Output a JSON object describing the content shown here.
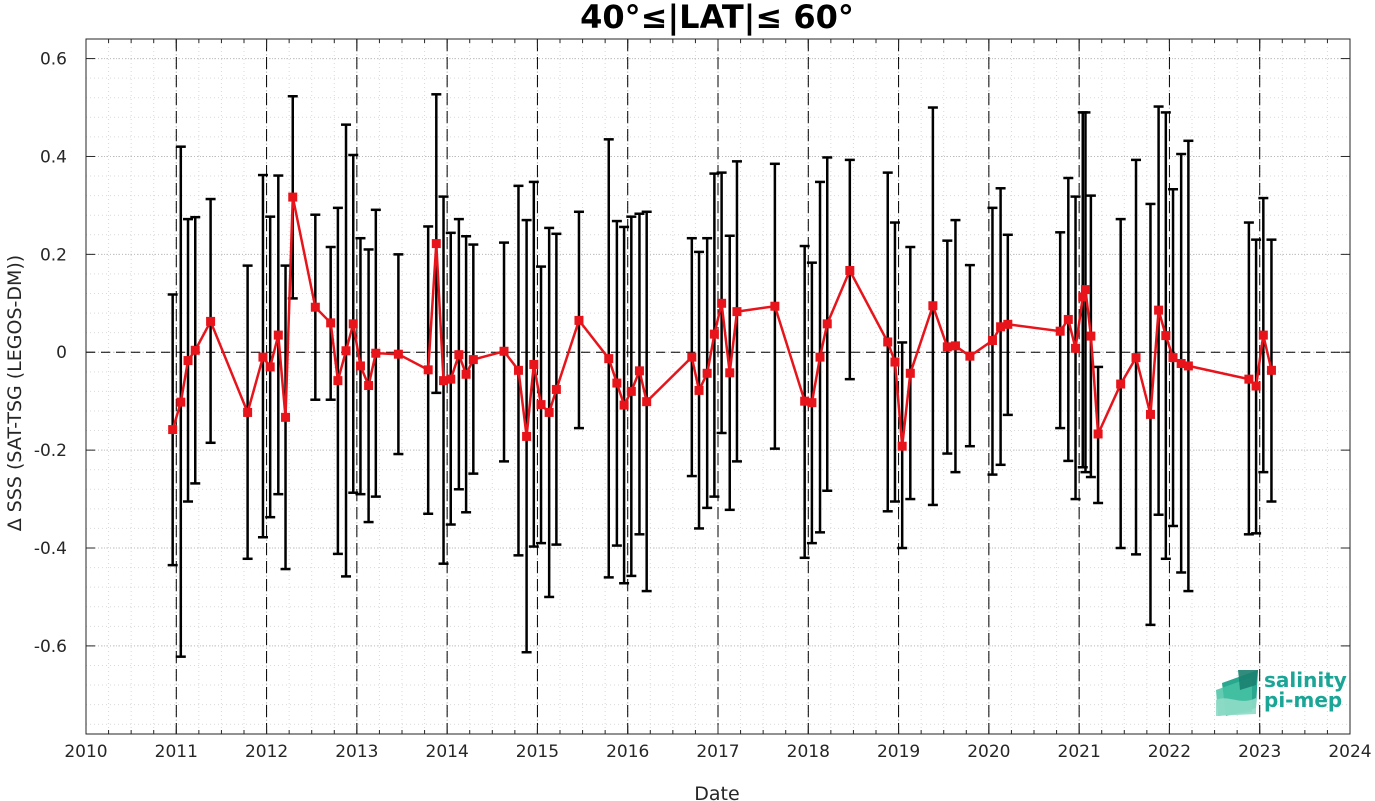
{
  "chart_data": {
    "type": "line",
    "title": "40°≤|LAT|≤ 60°",
    "xlabel": "Date",
    "ylabel": "Δ SSS (SAT-TSG (LEGOS-DM))",
    "xlim": [
      2010,
      2024
    ],
    "ylim": [
      -0.78,
      0.64
    ],
    "xticks": [
      "2010",
      "2011",
      "2012",
      "2013",
      "2014",
      "2015",
      "2016",
      "2017",
      "2018",
      "2019",
      "2020",
      "2021",
      "2022",
      "2023",
      "2024"
    ],
    "yticks": [
      "-0.6",
      "-0.4",
      "-0.2",
      "0",
      "0.2",
      "0.4",
      "0.6"
    ],
    "grid": true,
    "series": [
      {
        "color": "#e8141b",
        "error_bar_color": "#000000",
        "points": [
          {
            "x": 2010.96,
            "y": -0.158,
            "lo": -0.435,
            "hi": 0.118
          },
          {
            "x": 2011.05,
            "y": -0.102,
            "lo": -0.622,
            "hi": 0.42
          },
          {
            "x": 2011.13,
            "y": -0.017,
            "lo": -0.305,
            "hi": 0.272
          },
          {
            "x": 2011.21,
            "y": 0.004,
            "lo": -0.268,
            "hi": 0.276
          },
          {
            "x": 2011.38,
            "y": 0.063,
            "lo": -0.185,
            "hi": 0.313
          },
          {
            "x": 2011.79,
            "y": -0.123,
            "lo": -0.422,
            "hi": 0.177
          },
          {
            "x": 2011.96,
            "y": -0.01,
            "lo": -0.378,
            "hi": 0.362
          },
          {
            "x": 2012.04,
            "y": -0.03,
            "lo": -0.337,
            "hi": 0.277
          },
          {
            "x": 2012.13,
            "y": 0.035,
            "lo": -0.29,
            "hi": 0.361
          },
          {
            "x": 2012.21,
            "y": -0.133,
            "lo": -0.443,
            "hi": 0.177
          },
          {
            "x": 2012.29,
            "y": 0.317,
            "lo": 0.11,
            "hi": 0.523
          },
          {
            "x": 2012.54,
            "y": 0.092,
            "lo": -0.097,
            "hi": 0.281
          },
          {
            "x": 2012.71,
            "y": 0.06,
            "lo": -0.097,
            "hi": 0.215
          },
          {
            "x": 2012.79,
            "y": -0.058,
            "lo": -0.412,
            "hi": 0.295
          },
          {
            "x": 2012.88,
            "y": 0.003,
            "lo": -0.458,
            "hi": 0.465
          },
          {
            "x": 2012.96,
            "y": 0.058,
            "lo": -0.287,
            "hi": 0.403
          },
          {
            "x": 2013.04,
            "y": -0.028,
            "lo": -0.29,
            "hi": 0.233
          },
          {
            "x": 2013.13,
            "y": -0.068,
            "lo": -0.347,
            "hi": 0.21
          },
          {
            "x": 2013.21,
            "y": -0.002,
            "lo": -0.295,
            "hi": 0.291
          },
          {
            "x": 2013.46,
            "y": -0.004,
            "lo": -0.208,
            "hi": 0.2
          },
          {
            "x": 2013.79,
            "y": -0.036,
            "lo": -0.33,
            "hi": 0.257
          },
          {
            "x": 2013.88,
            "y": 0.222,
            "lo": -0.083,
            "hi": 0.527
          },
          {
            "x": 2013.96,
            "y": -0.058,
            "lo": -0.432,
            "hi": 0.318
          },
          {
            "x": 2014.04,
            "y": -0.055,
            "lo": -0.352,
            "hi": 0.244
          },
          {
            "x": 2014.13,
            "y": -0.005,
            "lo": -0.28,
            "hi": 0.272
          },
          {
            "x": 2014.21,
            "y": -0.045,
            "lo": -0.327,
            "hi": 0.237
          },
          {
            "x": 2014.29,
            "y": -0.015,
            "lo": -0.248,
            "hi": 0.22
          },
          {
            "x": 2014.63,
            "y": 0.002,
            "lo": -0.223,
            "hi": 0.224
          },
          {
            "x": 2014.79,
            "y": -0.037,
            "lo": -0.415,
            "hi": 0.34
          },
          {
            "x": 2014.88,
            "y": -0.172,
            "lo": -0.613,
            "hi": 0.27
          },
          {
            "x": 2014.96,
            "y": -0.025,
            "lo": -0.397,
            "hi": 0.348
          },
          {
            "x": 2015.04,
            "y": -0.107,
            "lo": -0.39,
            "hi": 0.175
          },
          {
            "x": 2015.13,
            "y": -0.123,
            "lo": -0.5,
            "hi": 0.254
          },
          {
            "x": 2015.21,
            "y": -0.076,
            "lo": -0.393,
            "hi": 0.242
          },
          {
            "x": 2015.46,
            "y": 0.065,
            "lo": -0.155,
            "hi": 0.287
          },
          {
            "x": 2015.79,
            "y": -0.013,
            "lo": -0.46,
            "hi": 0.435
          },
          {
            "x": 2015.88,
            "y": -0.063,
            "lo": -0.395,
            "hi": 0.268
          },
          {
            "x": 2015.96,
            "y": -0.108,
            "lo": -0.472,
            "hi": 0.256
          },
          {
            "x": 2016.04,
            "y": -0.08,
            "lo": -0.457,
            "hi": 0.277
          },
          {
            "x": 2016.13,
            "y": -0.038,
            "lo": -0.372,
            "hi": 0.283
          },
          {
            "x": 2016.21,
            "y": -0.101,
            "lo": -0.488,
            "hi": 0.287
          },
          {
            "x": 2016.71,
            "y": -0.01,
            "lo": -0.253,
            "hi": 0.233
          },
          {
            "x": 2016.79,
            "y": -0.078,
            "lo": -0.36,
            "hi": 0.205
          },
          {
            "x": 2016.88,
            "y": -0.043,
            "lo": -0.318,
            "hi": 0.233
          },
          {
            "x": 2016.96,
            "y": 0.037,
            "lo": -0.295,
            "hi": 0.365
          },
          {
            "x": 2017.04,
            "y": 0.1,
            "lo": -0.165,
            "hi": 0.367
          },
          {
            "x": 2017.13,
            "y": -0.042,
            "lo": -0.322,
            "hi": 0.238
          },
          {
            "x": 2017.21,
            "y": 0.083,
            "lo": -0.223,
            "hi": 0.39
          },
          {
            "x": 2017.63,
            "y": 0.094,
            "lo": -0.197,
            "hi": 0.385
          },
          {
            "x": 2017.96,
            "y": -0.1,
            "lo": -0.42,
            "hi": 0.217
          },
          {
            "x": 2018.04,
            "y": -0.103,
            "lo": -0.39,
            "hi": 0.183
          },
          {
            "x": 2018.13,
            "y": -0.01,
            "lo": -0.368,
            "hi": 0.348
          },
          {
            "x": 2018.21,
            "y": 0.058,
            "lo": -0.283,
            "hi": 0.398
          },
          {
            "x": 2018.46,
            "y": 0.167,
            "lo": -0.055,
            "hi": 0.393
          },
          {
            "x": 2018.88,
            "y": 0.021,
            "lo": -0.325,
            "hi": 0.367
          },
          {
            "x": 2018.96,
            "y": -0.02,
            "lo": -0.305,
            "hi": 0.265
          },
          {
            "x": 2019.04,
            "y": -0.192,
            "lo": -0.4,
            "hi": 0.02
          },
          {
            "x": 2019.13,
            "y": -0.043,
            "lo": -0.3,
            "hi": 0.215
          },
          {
            "x": 2019.38,
            "y": 0.095,
            "lo": -0.312,
            "hi": 0.5
          },
          {
            "x": 2019.54,
            "y": 0.011,
            "lo": -0.207,
            "hi": 0.228
          },
          {
            "x": 2019.63,
            "y": 0.013,
            "lo": -0.245,
            "hi": 0.27
          },
          {
            "x": 2019.79,
            "y": -0.008,
            "lo": -0.192,
            "hi": 0.178
          },
          {
            "x": 2020.04,
            "y": 0.024,
            "lo": -0.25,
            "hi": 0.295
          },
          {
            "x": 2020.13,
            "y": 0.052,
            "lo": -0.23,
            "hi": 0.335
          },
          {
            "x": 2020.21,
            "y": 0.057,
            "lo": -0.128,
            "hi": 0.24
          },
          {
            "x": 2020.79,
            "y": 0.043,
            "lo": -0.155,
            "hi": 0.245
          },
          {
            "x": 2020.88,
            "y": 0.067,
            "lo": -0.222,
            "hi": 0.356
          },
          {
            "x": 2020.96,
            "y": 0.008,
            "lo": -0.3,
            "hi": 0.318
          },
          {
            "x": 2021.04,
            "y": 0.113,
            "lo": -0.235,
            "hi": 0.49
          },
          {
            "x": 2021.07,
            "y": 0.128,
            "lo": -0.245,
            "hi": 0.49
          },
          {
            "x": 2021.13,
            "y": 0.033,
            "lo": -0.255,
            "hi": 0.32
          },
          {
            "x": 2021.21,
            "y": -0.167,
            "lo": -0.308,
            "hi": -0.03
          },
          {
            "x": 2021.46,
            "y": -0.065,
            "lo": -0.4,
            "hi": 0.272
          },
          {
            "x": 2021.63,
            "y": -0.011,
            "lo": -0.413,
            "hi": 0.393
          },
          {
            "x": 2021.79,
            "y": -0.127,
            "lo": -0.557,
            "hi": 0.303
          },
          {
            "x": 2021.88,
            "y": 0.086,
            "lo": -0.332,
            "hi": 0.502
          },
          {
            "x": 2021.96,
            "y": 0.034,
            "lo": -0.422,
            "hi": 0.49
          },
          {
            "x": 2022.04,
            "y": -0.011,
            "lo": -0.355,
            "hi": 0.333
          },
          {
            "x": 2022.13,
            "y": -0.023,
            "lo": -0.45,
            "hi": 0.405
          },
          {
            "x": 2022.21,
            "y": -0.028,
            "lo": -0.488,
            "hi": 0.432
          },
          {
            "x": 2022.88,
            "y": -0.055,
            "lo": -0.372,
            "hi": 0.265
          },
          {
            "x": 2022.96,
            "y": -0.069,
            "lo": -0.37,
            "hi": 0.23
          },
          {
            "x": 2023.04,
            "y": 0.035,
            "lo": -0.245,
            "hi": 0.315
          },
          {
            "x": 2023.13,
            "y": -0.037,
            "lo": -0.305,
            "hi": 0.23
          }
        ]
      }
    ]
  },
  "logo": {
    "line1": "salinity",
    "line2": "pi-mep",
    "color": "#1aa596"
  }
}
